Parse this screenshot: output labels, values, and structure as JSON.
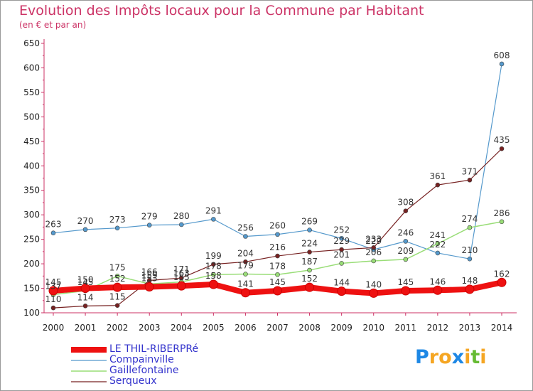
{
  "header": {
    "title": "Evolution des Impôts locaux pour la Commune par Habitant",
    "subtitle": "(en € et par an)"
  },
  "logo": {
    "letters": [
      {
        "ch": "P",
        "color": "#1e88e5"
      },
      {
        "ch": "r",
        "color": "#f5a623"
      },
      {
        "ch": "o",
        "color": "#f5a623"
      },
      {
        "ch": "x",
        "color": "#1e88e5"
      },
      {
        "ch": "i",
        "color": "#f5a623"
      },
      {
        "ch": "t",
        "color": "#66bb33"
      },
      {
        "ch": "i",
        "color": "#f5a623"
      }
    ]
  },
  "chart_data": {
    "type": "line",
    "title": "Evolution des Impôts locaux pour la Commune par Habitant",
    "subtitle": "(en € et par an)",
    "x": [
      "2000",
      "2001",
      "2002",
      "2003",
      "2004",
      "2005",
      "2006",
      "2007",
      "2008",
      "2009",
      "2010",
      "2011",
      "2012",
      "2013",
      "2014"
    ],
    "ylim": [
      100,
      650
    ],
    "yticks": [
      100,
      150,
      200,
      250,
      300,
      350,
      400,
      450,
      500,
      550,
      600,
      650
    ],
    "grid": false,
    "legend_position": "bottom-left",
    "series": [
      {
        "name": "LE THIL-RIBERPRé",
        "color": "#ee1111",
        "values": [
          145,
          150,
          152,
          153,
          155,
          158,
          141,
          145,
          152,
          144,
          140,
          145,
          146,
          148,
          162
        ]
      },
      {
        "name": "Compainville",
        "color": "#5599cc",
        "values": [
          263,
          270,
          273,
          279,
          280,
          291,
          256,
          260,
          269,
          252,
          229,
          246,
          222,
          210,
          608
        ]
      },
      {
        "name": "Gaillefontaine",
        "color": "#99dd77",
        "values": [
          137,
          145,
          175,
          159,
          163,
          178,
          179,
          178,
          187,
          201,
          206,
          209,
          241,
          274,
          286
        ]
      },
      {
        "name": "Serqueux",
        "color": "#772222",
        "values": [
          110,
          114,
          115,
          166,
          171,
          199,
          204,
          216,
          224,
          229,
          233,
          308,
          361,
          371,
          435
        ]
      }
    ]
  }
}
